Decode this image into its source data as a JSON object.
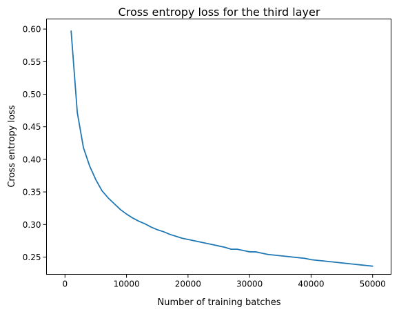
{
  "chart_data": {
    "type": "line",
    "title": "Cross entropy loss for the third layer",
    "xlabel": "Number of training batches",
    "ylabel": "Cross entropy loss",
    "xlim": [
      -3000,
      53000
    ],
    "ylim": [
      0.2235,
      0.6155
    ],
    "xticks": [
      0,
      10000,
      20000,
      30000,
      40000,
      50000
    ],
    "xtick_labels": [
      "0",
      "10000",
      "20000",
      "30000",
      "40000",
      "50000"
    ],
    "yticks": [
      0.25,
      0.3,
      0.35,
      0.4,
      0.45,
      0.5,
      0.55,
      0.6
    ],
    "ytick_labels": [
      "0.25",
      "0.30",
      "0.35",
      "0.40",
      "0.45",
      "0.50",
      "0.55",
      "0.60"
    ],
    "grid": false,
    "series": [
      {
        "color": "#1f77b4",
        "x": [
          1000,
          2000,
          3000,
          4000,
          5000,
          6000,
          7000,
          8000,
          9000,
          10000,
          11000,
          12000,
          13000,
          14000,
          15000,
          16000,
          17000,
          18000,
          19000,
          20000,
          21000,
          22000,
          23000,
          24000,
          25000,
          26000,
          27000,
          28000,
          29000,
          30000,
          31000,
          32000,
          33000,
          34000,
          35000,
          36000,
          37000,
          38000,
          39000,
          40000,
          41000,
          42000,
          43000,
          44000,
          45000,
          46000,
          47000,
          48000,
          49000,
          50000
        ],
        "values": [
          0.597,
          0.472,
          0.418,
          0.39,
          0.369,
          0.352,
          0.341,
          0.332,
          0.323,
          0.316,
          0.31,
          0.305,
          0.301,
          0.296,
          0.292,
          0.289,
          0.285,
          0.282,
          0.279,
          0.277,
          0.275,
          0.273,
          0.271,
          0.269,
          0.267,
          0.265,
          0.262,
          0.262,
          0.26,
          0.258,
          0.258,
          0.256,
          0.254,
          0.253,
          0.252,
          0.251,
          0.25,
          0.249,
          0.248,
          0.246,
          0.245,
          0.244,
          0.243,
          0.242,
          0.241,
          0.24,
          0.239,
          0.238,
          0.237,
          0.236
        ]
      }
    ]
  }
}
